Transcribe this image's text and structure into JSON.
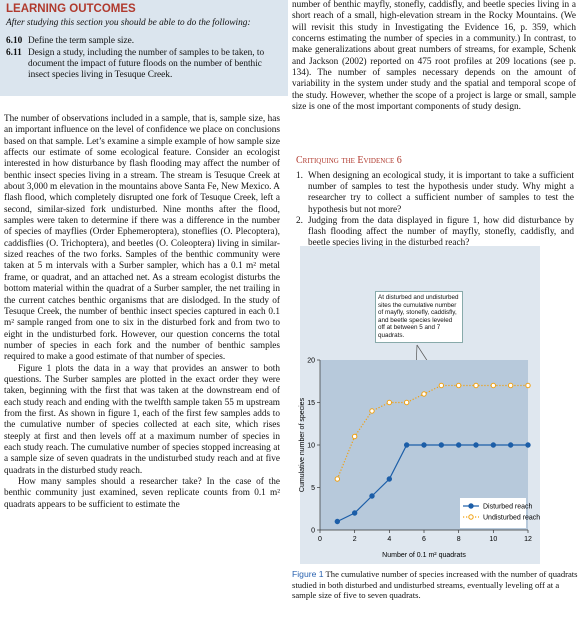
{
  "learning_outcomes": {
    "title": "LEARNING OUTCOMES",
    "intro": "After studying this section you should be able to do the following:",
    "items": [
      {
        "number": "6.10",
        "text": "Define the term sample size."
      },
      {
        "number": "6.11",
        "text": "Design a study, including the number of samples to be taken, to document the impact of future floods on the number of benthic insect species living in Tesuque Creek."
      }
    ]
  },
  "body_left": [
    "The number of observations included in a sample, that is, sample size, has an important influence on the level of confidence we place on conclusions based on that sample. Let’s examine a simple example of how sample size affects our estimate of some ecological feature. Consider an ecologist interested in how disturbance by flash flooding may affect the number of benthic insect species living in a stream. The stream is Tesuque Creek at about 3,000 m elevation in the mountains above Santa Fe, New Mexico. A flash flood, which completely disrupted one fork of Tesuque Creek, left a second, similar-sized fork undisturbed. Nine months after the flood, samples were taken to determine if there was a difference in the number of species of mayflies (Order Ephemeroptera), stoneflies (O. Plecoptera), caddisflies (O. Trichoptera), and beetles (O. Coleoptera) living in similar-sized reaches of the two forks. Samples of the benthic community were taken at 5 m intervals with a Surber sampler, which has a 0.1 m² metal frame, or quadrat, and an attached net. As a stream ecologist disturbs the bottom material within the quadrat of a Surber sampler, the net trailing in the current catches benthic organisms that are dislodged. In the study of Tesuque Creek, the number of benthic insect species captured in each 0.1 m² sample ranged from one to six in the disturbed fork and from two to eight in the undisturbed fork. However, our question concerns the total number of species in each fork and the number of benthic samples required to make a good estimate of that number of species.",
    "Figure 1 plots the data in a way that provides an answer to both questions. The Surber samples are plotted in the exact order they were taken, beginning with the first that was taken at the downstream end of each study reach and ending with the twelfth sample taken 55 m upstream from the first. As shown in figure 1, each of the first few samples adds to the cumulative number of species collected at each site, which rises steeply at first and then levels off at a maximum number of species in each study reach. The cumulative number of species stopped increasing at a sample size of seven quadrats in the undisturbed study reach and at five quadrats in the disturbed study reach.",
    "How many samples should a researcher take? In the case of the benthic community just examined, seven replicate counts from 0.1 m² quadrats appears to be sufficient to estimate the"
  ],
  "body_right": "number of benthic mayfly, stonefly, caddisfly, and beetle species living in a short reach of a small, high-elevation stream in the Rocky Mountains. (We will revisit this study in Investigating the Evidence 16, p. 359, which concerns estimating the number of species in a community.) In contrast, to make generalizations about great numbers of streams, for example, Schenk and Jackson (2002) reported on 475 root profiles at 209 locations (see p. 134). The number of samples necessary depends on the amount of variability in the system under study and the spatial and temporal scope of the study. However, whether the scope of a project is large or small, sample size is one of the most important components of study design.",
  "critique": {
    "title": "Critiquing the Evidence 6",
    "items": [
      {
        "number": "1.",
        "text": "When designing an ecological study, it is important to take a sufficient number of samples to test the hypothesis under study. Why might a researcher try to collect a sufficient number of samples to test the hypothesis but not more?"
      },
      {
        "number": "2.",
        "text": "Judging from the data displayed in figure 1, how did disturbance by flash flooding affect the number of mayfly, stonefly, caddisfly, and beetle species living in the disturbed reach?"
      }
    ]
  },
  "figure": {
    "annotation": "At disturbed and undisturbed sites the cumulative number of mayfly, stonefly, caddisfly, and beetle species leveled off at between 5 and 7 quadrats.",
    "caption_label": "Figure 1",
    "caption": "The cumulative number of species increased with the number of quadrats studied in both disturbed and undisturbed streams, eventually leveling off at a sample size of five to seven quadrats."
  },
  "chart_data": {
    "type": "line",
    "x_label": "Number of 0.1 m² quadrats",
    "y_label": "Cumulative number of species",
    "x": [
      1,
      2,
      3,
      4,
      5,
      6,
      7,
      8,
      9,
      10,
      11,
      12
    ],
    "series": [
      {
        "name": "Disturbed reach",
        "color": "#1c5ea8",
        "values": [
          1,
          2,
          4,
          6,
          10,
          10,
          10,
          10,
          10,
          10,
          10,
          10
        ]
      },
      {
        "name": "Undisturbed reach",
        "color": "#f0a010",
        "values": [
          6,
          11,
          14,
          15,
          15,
          16,
          17,
          17,
          17,
          17,
          17,
          17
        ]
      }
    ],
    "xlim": [
      0,
      12
    ],
    "ylim": [
      0,
      20
    ],
    "xticks": [
      0,
      2,
      4,
      6,
      8,
      10,
      12
    ],
    "yticks": [
      0,
      5,
      10,
      15,
      20
    ],
    "grid": false,
    "legend": "lower right"
  }
}
